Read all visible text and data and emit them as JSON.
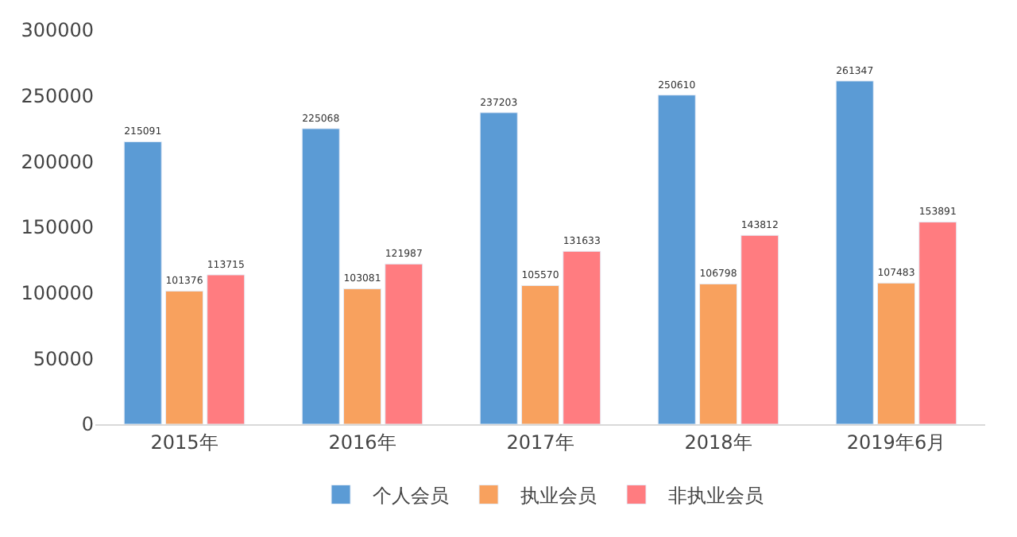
{
  "chart_data": {
    "type": "bar",
    "categories": [
      "2015年",
      "2016年",
      "2017年",
      "2018年",
      "2019年6月"
    ],
    "series": [
      {
        "name": "个人会员",
        "color": "#5b9bd5",
        "values": [
          215091,
          225068,
          237203,
          250610,
          261347
        ]
      },
      {
        "name": "执业会员",
        "color": "#f8a15e",
        "values": [
          101376,
          103081,
          105570,
          106798,
          107483
        ]
      },
      {
        "name": "非执业会员",
        "color": "#ff7c80",
        "values": [
          113715,
          121987,
          131633,
          143812,
          153891
        ]
      }
    ],
    "ylim": [
      0,
      300000
    ],
    "yticks": [
      0,
      50000,
      100000,
      150000,
      200000,
      250000,
      300000
    ],
    "data_labels": true,
    "legend": "bottom",
    "grid": false
  }
}
